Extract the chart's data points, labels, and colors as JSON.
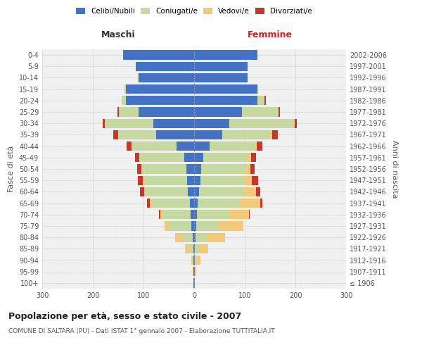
{
  "age_groups": [
    "100+",
    "95-99",
    "90-94",
    "85-89",
    "80-84",
    "75-79",
    "70-74",
    "65-69",
    "60-64",
    "55-59",
    "50-54",
    "45-49",
    "40-44",
    "35-39",
    "30-34",
    "25-29",
    "20-24",
    "15-19",
    "10-14",
    "5-9",
    "0-4"
  ],
  "birth_years": [
    "≤ 1906",
    "1907-1911",
    "1912-1916",
    "1917-1921",
    "1922-1926",
    "1927-1931",
    "1932-1936",
    "1937-1941",
    "1942-1946",
    "1947-1951",
    "1952-1956",
    "1957-1961",
    "1962-1966",
    "1967-1971",
    "1972-1976",
    "1977-1981",
    "1982-1986",
    "1987-1991",
    "1992-1996",
    "1997-2001",
    "2002-2006"
  ],
  "maschi": {
    "celibi": [
      1,
      1,
      1,
      2,
      3,
      5,
      7,
      8,
      12,
      14,
      15,
      20,
      35,
      75,
      80,
      110,
      135,
      135,
      110,
      115,
      140
    ],
    "coniugati": [
      0,
      1,
      2,
      8,
      20,
      45,
      55,
      75,
      85,
      85,
      88,
      88,
      88,
      75,
      95,
      38,
      8,
      2,
      1,
      0,
      0
    ],
    "vedovi": [
      0,
      1,
      3,
      8,
      15,
      8,
      5,
      5,
      2,
      2,
      1,
      1,
      0,
      0,
      2,
      0,
      0,
      0,
      0,
      0,
      0
    ],
    "divorziati": [
      0,
      0,
      0,
      0,
      0,
      0,
      2,
      5,
      8,
      10,
      8,
      8,
      10,
      10,
      4,
      4,
      0,
      0,
      0,
      0,
      0
    ]
  },
  "femmine": {
    "nubili": [
      1,
      1,
      1,
      2,
      3,
      4,
      5,
      7,
      10,
      12,
      14,
      18,
      30,
      55,
      70,
      95,
      125,
      125,
      105,
      105,
      125
    ],
    "coniugate": [
      0,
      1,
      3,
      8,
      20,
      45,
      65,
      85,
      90,
      88,
      88,
      88,
      90,
      95,
      125,
      70,
      12,
      2,
      1,
      0,
      0
    ],
    "vedove": [
      0,
      2,
      8,
      18,
      38,
      48,
      38,
      38,
      22,
      14,
      9,
      7,
      4,
      4,
      3,
      2,
      2,
      0,
      0,
      0,
      0
    ],
    "divorziate": [
      0,
      0,
      0,
      0,
      0,
      0,
      2,
      5,
      9,
      12,
      9,
      9,
      11,
      11,
      5,
      3,
      2,
      0,
      0,
      0,
      0
    ]
  },
  "colors": {
    "celibi_nubili": "#4472c4",
    "coniugati": "#c5d9a0",
    "vedovi": "#f5c97a",
    "divorziati": "#c0392b"
  },
  "title": "Popolazione per età, sesso e stato civile - 2007",
  "subtitle": "COMUNE DI SALTARA (PU) - Dati ISTAT 1° gennaio 2007 - Elaborazione TUTTITALIA.IT",
  "xlabel_left": "Maschi",
  "xlabel_right": "Femmine",
  "ylabel_left": "Fasce di età",
  "ylabel_right": "Anni di nascita",
  "xlim": 300,
  "bg_color": "#ffffff",
  "grid_color": "#cccccc"
}
